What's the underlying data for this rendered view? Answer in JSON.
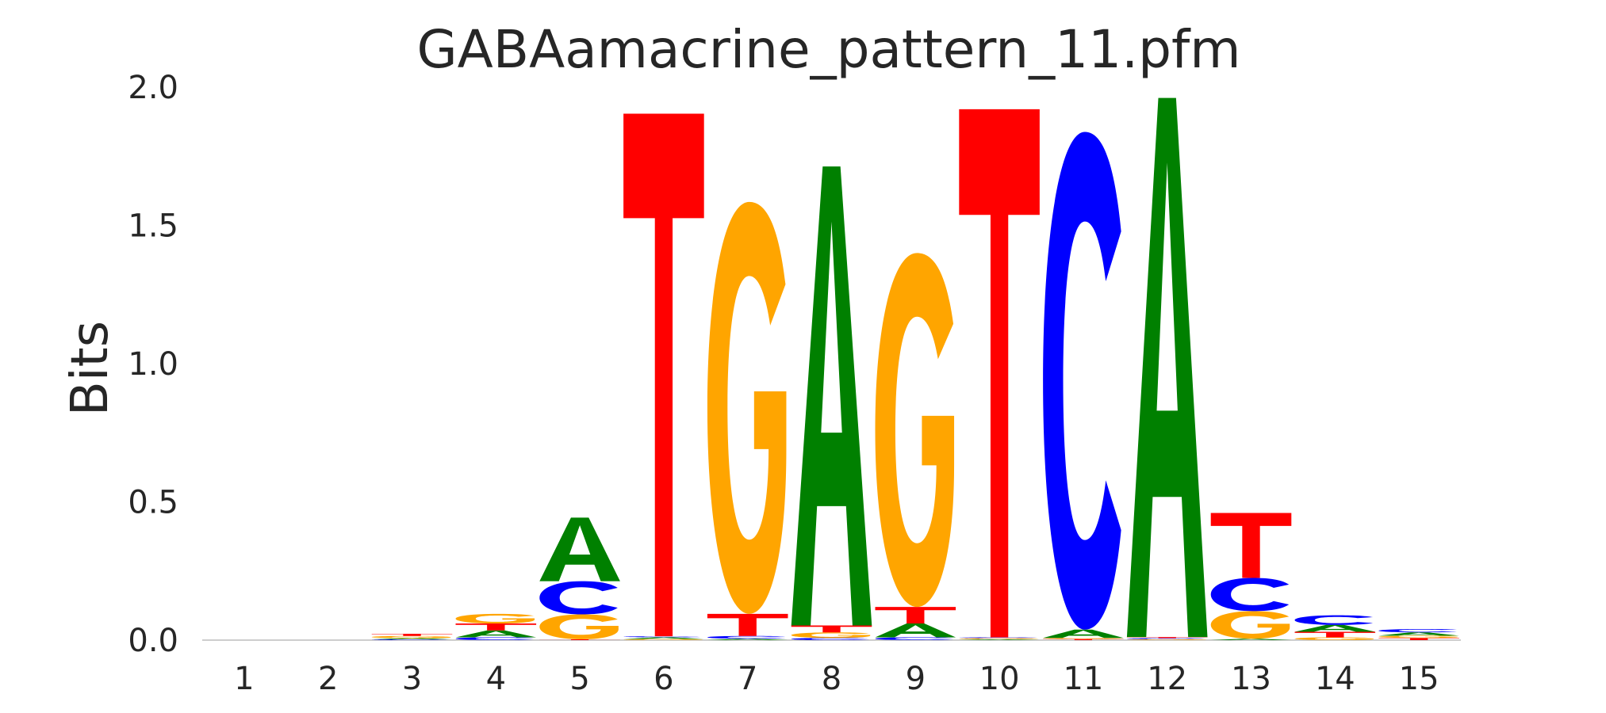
{
  "chart_data": {
    "type": "sequence-logo",
    "title": "GABAamacrine_pattern_11.pfm",
    "ylabel": "Bits",
    "xlabel": "",
    "ylim": [
      0,
      2.0
    ],
    "yticks": [
      "0.0",
      "0.5",
      "1.0",
      "1.5",
      "2.0"
    ],
    "ytick_values": [
      0,
      0.5,
      1.0,
      1.5,
      2.0
    ],
    "categories": [
      "1",
      "2",
      "3",
      "4",
      "5",
      "6",
      "7",
      "8",
      "9",
      "10",
      "11",
      "12",
      "13",
      "14",
      "15"
    ],
    "colors": {
      "A": "#008000",
      "C": "#0000ff",
      "G": "#ffa500",
      "T": "#ff0000"
    },
    "grid": false,
    "positions": [
      {
        "pos": "1",
        "letters": []
      },
      {
        "pos": "2",
        "letters": []
      },
      {
        "pos": "3",
        "letters": [
          {
            "base": "C",
            "bits": 0.003
          },
          {
            "base": "A",
            "bits": 0.004
          },
          {
            "base": "G",
            "bits": 0.008
          },
          {
            "base": "T",
            "bits": 0.008
          }
        ]
      },
      {
        "pos": "4",
        "letters": [
          {
            "base": "C",
            "bits": 0.01
          },
          {
            "base": "A",
            "bits": 0.025
          },
          {
            "base": "T",
            "bits": 0.025
          },
          {
            "base": "G",
            "bits": 0.035
          }
        ]
      },
      {
        "pos": "5",
        "letters": [
          {
            "base": "T",
            "bits": 0.003
          },
          {
            "base": "G",
            "bits": 0.09
          },
          {
            "base": "C",
            "bits": 0.12
          },
          {
            "base": "A",
            "bits": 0.23
          }
        ]
      },
      {
        "pos": "6",
        "letters": [
          {
            "base": "G",
            "bits": 0.004
          },
          {
            "base": "A",
            "bits": 0.006
          },
          {
            "base": "C",
            "bits": 0.004
          },
          {
            "base": "T",
            "bits": 1.89
          }
        ]
      },
      {
        "pos": "7",
        "letters": [
          {
            "base": "A",
            "bits": 0.005
          },
          {
            "base": "C",
            "bits": 0.01
          },
          {
            "base": "T",
            "bits": 0.08
          },
          {
            "base": "G",
            "bits": 1.49
          }
        ]
      },
      {
        "pos": "8",
        "letters": [
          {
            "base": "C",
            "bits": 0.008
          },
          {
            "base": "G",
            "bits": 0.02
          },
          {
            "base": "T",
            "bits": 0.025
          },
          {
            "base": "A",
            "bits": 1.66
          }
        ]
      },
      {
        "pos": "9",
        "letters": [
          {
            "base": "C",
            "bits": 0.01
          },
          {
            "base": "A",
            "bits": 0.05
          },
          {
            "base": "T",
            "bits": 0.06
          },
          {
            "base": "G",
            "bits": 1.28
          }
        ]
      },
      {
        "pos": "10",
        "letters": [
          {
            "base": "A",
            "bits": 0.003
          },
          {
            "base": "G",
            "bits": 0.004
          },
          {
            "base": "C",
            "bits": 0.003
          },
          {
            "base": "T",
            "bits": 1.91
          }
        ]
      },
      {
        "pos": "11",
        "letters": [
          {
            "base": "T",
            "bits": 0.004
          },
          {
            "base": "G",
            "bits": 0.004
          },
          {
            "base": "A",
            "bits": 0.03
          },
          {
            "base": "C",
            "bits": 1.8
          }
        ]
      },
      {
        "pos": "12",
        "letters": [
          {
            "base": "G",
            "bits": 0.003
          },
          {
            "base": "C",
            "bits": 0.004
          },
          {
            "base": "T",
            "bits": 0.004
          },
          {
            "base": "A",
            "bits": 1.95
          }
        ]
      },
      {
        "pos": "13",
        "letters": [
          {
            "base": "A",
            "bits": 0.005
          },
          {
            "base": "G",
            "bits": 0.1
          },
          {
            "base": "C",
            "bits": 0.12
          },
          {
            "base": "T",
            "bits": 0.235
          }
        ]
      },
      {
        "pos": "14",
        "letters": [
          {
            "base": "G",
            "bits": 0.01
          },
          {
            "base": "T",
            "bits": 0.02
          },
          {
            "base": "A",
            "bits": 0.025
          },
          {
            "base": "C",
            "bits": 0.035
          }
        ]
      },
      {
        "pos": "15",
        "letters": [
          {
            "base": "T",
            "bits": 0.008
          },
          {
            "base": "G",
            "bits": 0.008
          },
          {
            "base": "A",
            "bits": 0.012
          },
          {
            "base": "C",
            "bits": 0.012
          }
        ]
      }
    ]
  }
}
